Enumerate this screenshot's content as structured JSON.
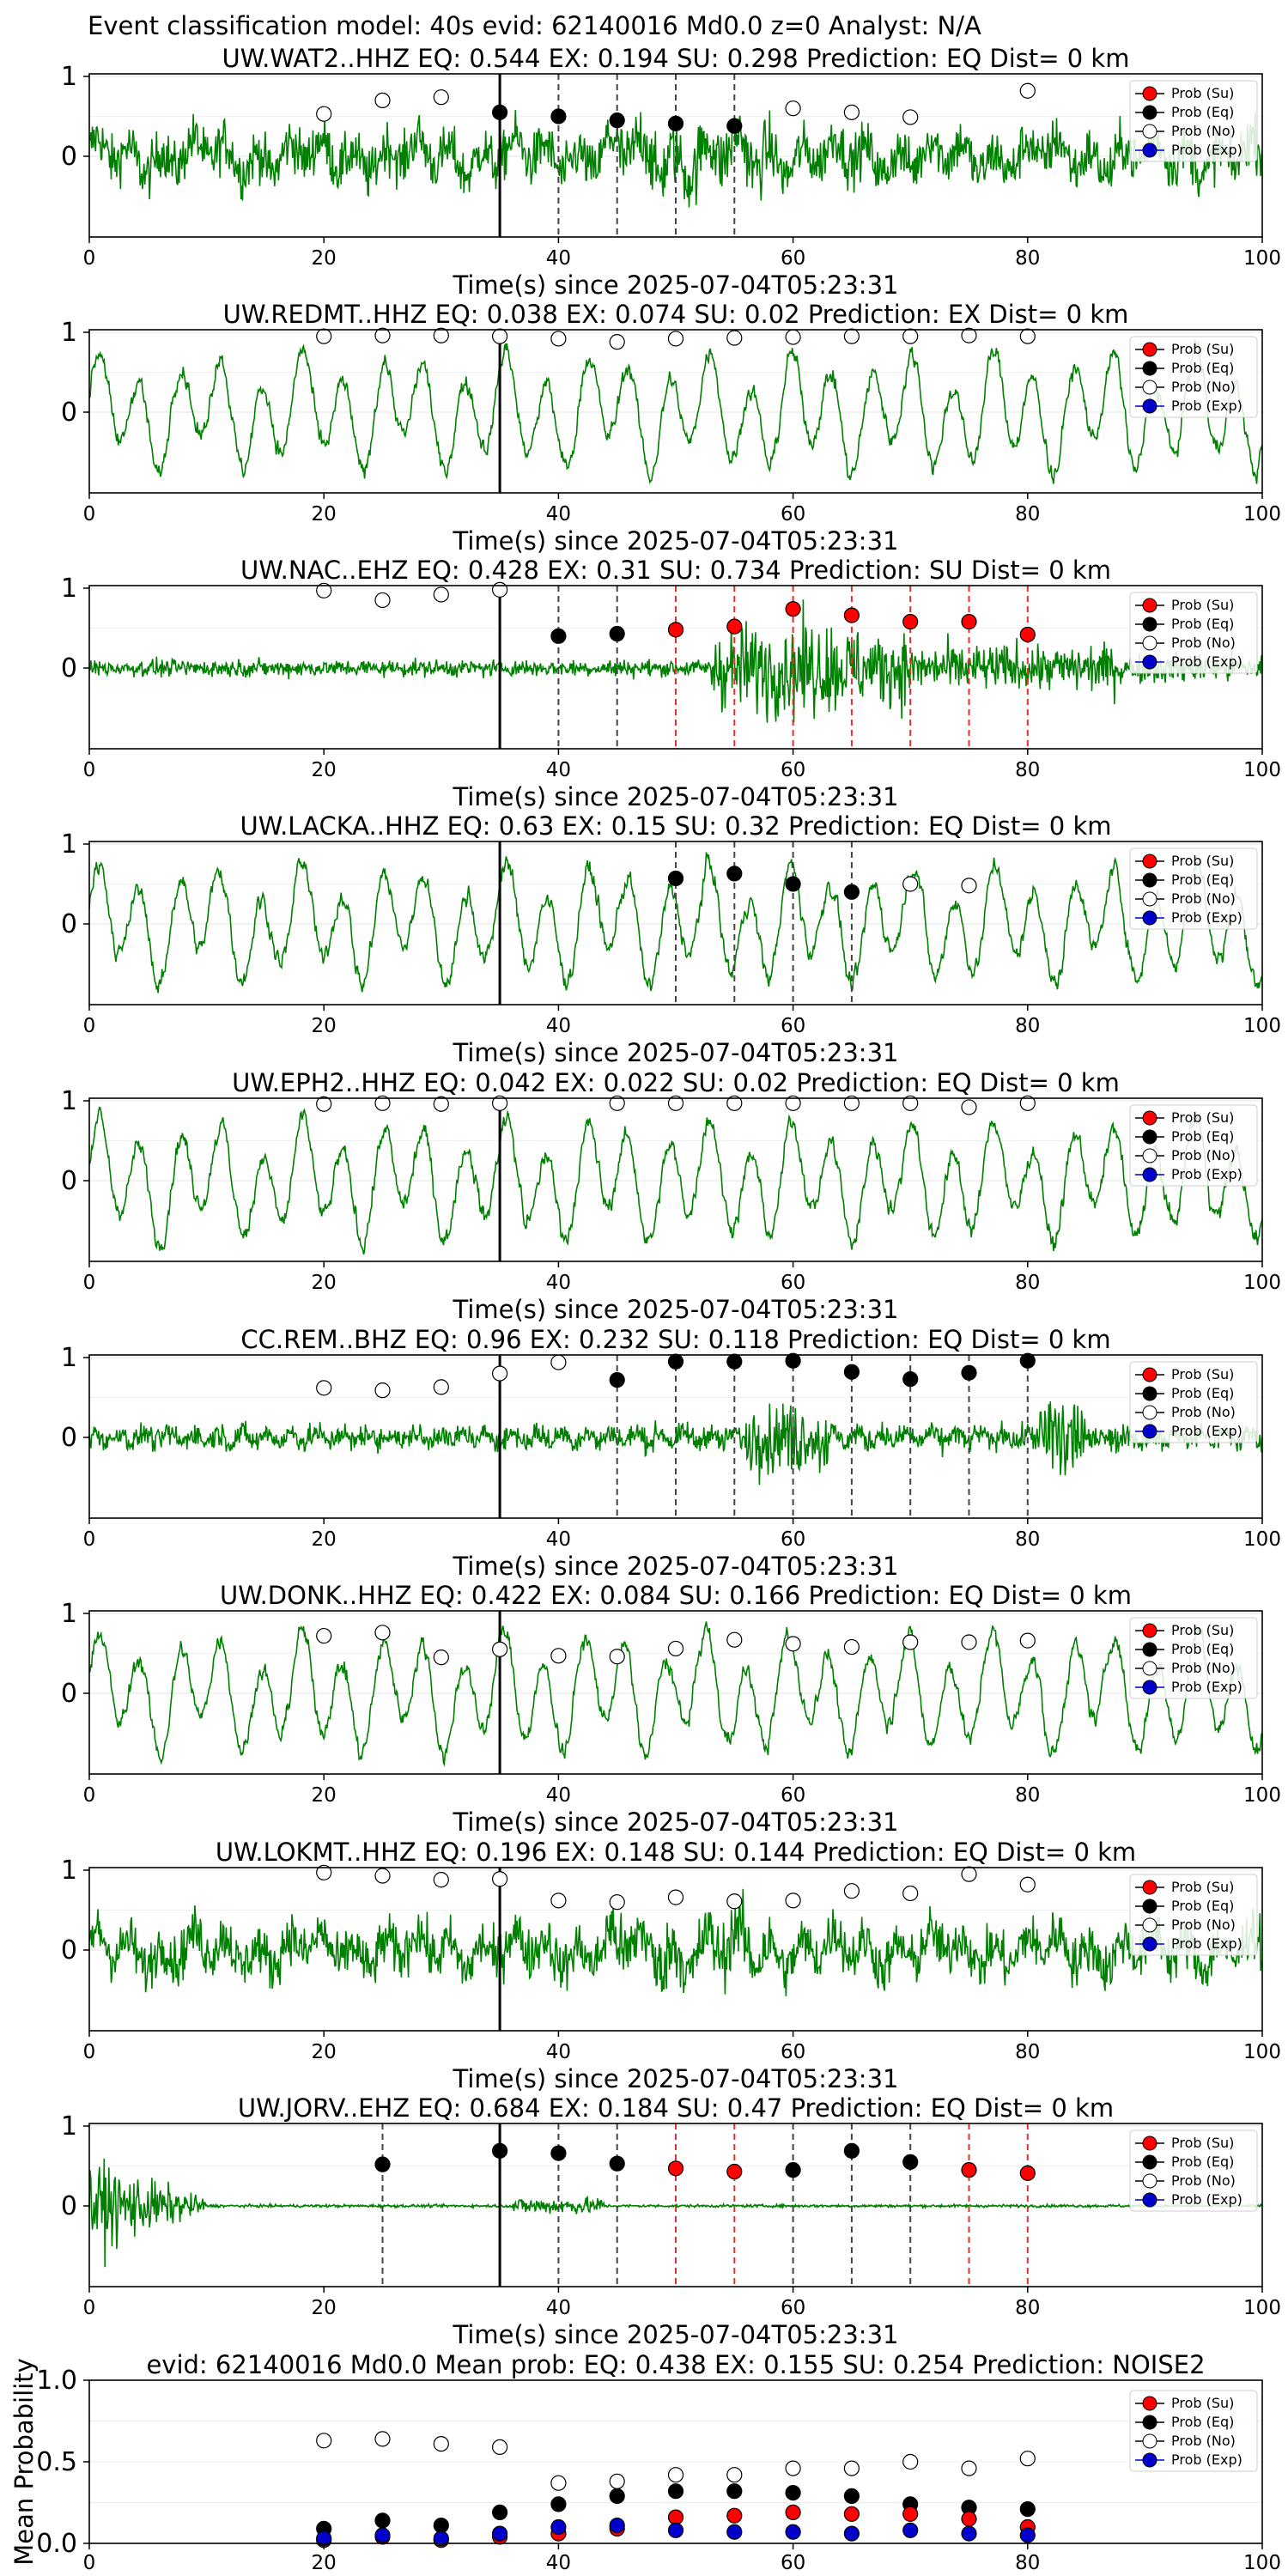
{
  "figure_title": "Event classification model: 40s evid: 62140016 Md0.0 z=0 Analyst: N/A",
  "legend_labels": [
    "Prob (Su)",
    "Prob (Eq)",
    "Prob (No)",
    "Prob (Exp)"
  ],
  "colors": {
    "su": "#ff0000",
    "eq": "#000000",
    "no": "#ffffff",
    "exp": "#0000cc",
    "trace": "#008000",
    "picks_eq": "#444444",
    "picks_su": "#e03030"
  },
  "chart_data": [
    {
      "type": "line",
      "station": "UW.WAT2..HHZ",
      "title": "UW.WAT2..HHZ   EQ: 0.544  EX: 0.194  SU: 0.298   Prediction: EQ    Dist= 0 km",
      "xlabel": "Time(s) since 2025-07-04T05:23:31",
      "xlim": [
        0,
        100
      ],
      "xticks": [
        0,
        20,
        40,
        60,
        80,
        100
      ],
      "yticks": [
        0,
        1
      ],
      "grid": true,
      "legend": "right",
      "trace_style": "dense",
      "onset": 35,
      "picks_eq": [
        40,
        45,
        50,
        55
      ],
      "picks_su": [],
      "markers": [
        {
          "x": 20,
          "cls": "no",
          "y": 0.53
        },
        {
          "x": 25,
          "cls": "no",
          "y": 0.7
        },
        {
          "x": 30,
          "cls": "no",
          "y": 0.74
        },
        {
          "x": 35,
          "cls": "eq",
          "y": 0.55
        },
        {
          "x": 40,
          "cls": "eq",
          "y": 0.5
        },
        {
          "x": 45,
          "cls": "eq",
          "y": 0.45
        },
        {
          "x": 50,
          "cls": "eq",
          "y": 0.41
        },
        {
          "x": 55,
          "cls": "eq",
          "y": 0.38
        },
        {
          "x": 60,
          "cls": "no",
          "y": 0.6
        },
        {
          "x": 65,
          "cls": "no",
          "y": 0.55
        },
        {
          "x": 70,
          "cls": "no",
          "y": 0.49
        },
        {
          "x": 80,
          "cls": "no",
          "y": 0.82
        }
      ]
    },
    {
      "type": "line",
      "station": "UW.REDMT..HHZ",
      "title": "UW.REDMT..HHZ   EQ: 0.038  EX: 0.074  SU: 0.02   Prediction: EX    Dist= 0 km",
      "xlabel": "Time(s) since 2025-07-04T05:23:31",
      "xlim": [
        0,
        100
      ],
      "xticks": [
        0,
        20,
        40,
        60,
        80,
        100
      ],
      "yticks": [
        0,
        1
      ],
      "grid": true,
      "legend": "right",
      "trace_style": "wavy",
      "onset": 35,
      "picks_eq": [],
      "picks_su": [],
      "markers": [
        {
          "x": 20,
          "cls": "no",
          "y": 0.95
        },
        {
          "x": 25,
          "cls": "no",
          "y": 0.96
        },
        {
          "x": 30,
          "cls": "no",
          "y": 0.96
        },
        {
          "x": 35,
          "cls": "no",
          "y": 0.95
        },
        {
          "x": 40,
          "cls": "no",
          "y": 0.92
        },
        {
          "x": 45,
          "cls": "no",
          "y": 0.88
        },
        {
          "x": 50,
          "cls": "no",
          "y": 0.92
        },
        {
          "x": 55,
          "cls": "no",
          "y": 0.93
        },
        {
          "x": 60,
          "cls": "no",
          "y": 0.94
        },
        {
          "x": 65,
          "cls": "no",
          "y": 0.95
        },
        {
          "x": 70,
          "cls": "no",
          "y": 0.95
        },
        {
          "x": 75,
          "cls": "no",
          "y": 0.96
        },
        {
          "x": 80,
          "cls": "no",
          "y": 0.95
        }
      ]
    },
    {
      "type": "line",
      "station": "UW.NAC..EHZ",
      "title": "UW.NAC..EHZ   EQ: 0.428  EX: 0.31  SU: 0.734   Prediction: SU    Dist= 0 km",
      "xlabel": "Time(s) since 2025-07-04T05:23:31",
      "xlim": [
        0,
        100
      ],
      "xticks": [
        0,
        20,
        40,
        60,
        80,
        100
      ],
      "yticks": [
        0,
        1
      ],
      "grid": true,
      "legend": "right",
      "trace_style": "burst",
      "onset": 35,
      "picks_eq": [
        40,
        45
      ],
      "picks_su": [
        50,
        55,
        60,
        65,
        70,
        75,
        80
      ],
      "markers": [
        {
          "x": 20,
          "cls": "no",
          "y": 0.97
        },
        {
          "x": 25,
          "cls": "no",
          "y": 0.85
        },
        {
          "x": 30,
          "cls": "no",
          "y": 0.92
        },
        {
          "x": 35,
          "cls": "no",
          "y": 0.98
        },
        {
          "x": 40,
          "cls": "eq",
          "y": 0.4
        },
        {
          "x": 45,
          "cls": "eq",
          "y": 0.43
        },
        {
          "x": 50,
          "cls": "su",
          "y": 0.48
        },
        {
          "x": 55,
          "cls": "su",
          "y": 0.52
        },
        {
          "x": 60,
          "cls": "su",
          "y": 0.74
        },
        {
          "x": 65,
          "cls": "su",
          "y": 0.66
        },
        {
          "x": 70,
          "cls": "su",
          "y": 0.58
        },
        {
          "x": 75,
          "cls": "su",
          "y": 0.58
        },
        {
          "x": 80,
          "cls": "su",
          "y": 0.42
        }
      ]
    },
    {
      "type": "line",
      "station": "UW.LACKA..HHZ",
      "title": "UW.LACKA..HHZ   EQ: 0.63  EX: 0.15  SU: 0.32   Prediction: EQ    Dist= 0 km",
      "xlabel": "Time(s) since 2025-07-04T05:23:31",
      "xlim": [
        0,
        100
      ],
      "xticks": [
        0,
        20,
        40,
        60,
        80,
        100
      ],
      "yticks": [
        0,
        1
      ],
      "grid": true,
      "legend": "right",
      "trace_style": "wavy",
      "onset": 35,
      "picks_eq": [
        50,
        55,
        60,
        65
      ],
      "picks_su": [],
      "markers": [
        {
          "x": 50,
          "cls": "eq",
          "y": 0.57
        },
        {
          "x": 55,
          "cls": "eq",
          "y": 0.63
        },
        {
          "x": 60,
          "cls": "eq",
          "y": 0.5
        },
        {
          "x": 65,
          "cls": "eq",
          "y": 0.4
        },
        {
          "x": 70,
          "cls": "no",
          "y": 0.5
        },
        {
          "x": 75,
          "cls": "no",
          "y": 0.48
        }
      ]
    },
    {
      "type": "line",
      "station": "UW.EPH2..HHZ",
      "title": "UW.EPH2..HHZ   EQ: 0.042  EX: 0.022  SU: 0.02   Prediction: EQ    Dist= 0 km",
      "xlabel": "Time(s) since 2025-07-04T05:23:31",
      "xlim": [
        0,
        100
      ],
      "xticks": [
        0,
        20,
        40,
        60,
        80,
        100
      ],
      "yticks": [
        0,
        1
      ],
      "grid": true,
      "legend": "right",
      "trace_style": "wavy",
      "onset": 35,
      "picks_eq": [],
      "picks_su": [],
      "markers": [
        {
          "x": 20,
          "cls": "no",
          "y": 0.96
        },
        {
          "x": 25,
          "cls": "no",
          "y": 0.97
        },
        {
          "x": 30,
          "cls": "no",
          "y": 0.96
        },
        {
          "x": 35,
          "cls": "no",
          "y": 0.97
        },
        {
          "x": 45,
          "cls": "no",
          "y": 0.97
        },
        {
          "x": 50,
          "cls": "no",
          "y": 0.97
        },
        {
          "x": 55,
          "cls": "no",
          "y": 0.97
        },
        {
          "x": 60,
          "cls": "no",
          "y": 0.97
        },
        {
          "x": 65,
          "cls": "no",
          "y": 0.97
        },
        {
          "x": 70,
          "cls": "no",
          "y": 0.97
        },
        {
          "x": 75,
          "cls": "no",
          "y": 0.92
        },
        {
          "x": 80,
          "cls": "no",
          "y": 0.97
        }
      ]
    },
    {
      "type": "line",
      "station": "CC.REM..BHZ",
      "title": "CC.REM..BHZ   EQ: 0.96  EX: 0.232  SU: 0.118   Prediction: EQ    Dist= 0 km",
      "xlabel": "Time(s) since 2025-07-04T05:23:31",
      "xlim": [
        0,
        100
      ],
      "xticks": [
        0,
        20,
        40,
        60,
        80,
        100
      ],
      "yticks": [
        0,
        1
      ],
      "grid": true,
      "legend": "right",
      "trace_style": "spiky",
      "onset": 35,
      "picks_eq": [
        45,
        50,
        55,
        60,
        65,
        70,
        75,
        80
      ],
      "picks_su": [],
      "markers": [
        {
          "x": 20,
          "cls": "no",
          "y": 0.62
        },
        {
          "x": 25,
          "cls": "no",
          "y": 0.59
        },
        {
          "x": 30,
          "cls": "no",
          "y": 0.63
        },
        {
          "x": 35,
          "cls": "no",
          "y": 0.8
        },
        {
          "x": 40,
          "cls": "no",
          "y": 0.94
        },
        {
          "x": 45,
          "cls": "eq",
          "y": 0.72
        },
        {
          "x": 50,
          "cls": "eq",
          "y": 0.95
        },
        {
          "x": 55,
          "cls": "eq",
          "y": 0.95
        },
        {
          "x": 60,
          "cls": "eq",
          "y": 0.96
        },
        {
          "x": 65,
          "cls": "eq",
          "y": 0.82
        },
        {
          "x": 70,
          "cls": "eq",
          "y": 0.73
        },
        {
          "x": 75,
          "cls": "eq",
          "y": 0.81
        },
        {
          "x": 80,
          "cls": "eq",
          "y": 0.96
        }
      ]
    },
    {
      "type": "line",
      "station": "UW.DONK..HHZ",
      "title": "UW.DONK..HHZ   EQ: 0.422  EX: 0.084  SU: 0.166   Prediction: EQ    Dist= 0 km",
      "xlabel": "Time(s) since 2025-07-04T05:23:31",
      "xlim": [
        0,
        100
      ],
      "xticks": [
        0,
        20,
        40,
        60,
        80,
        100
      ],
      "yticks": [
        0,
        1
      ],
      "grid": true,
      "legend": "right",
      "trace_style": "wavy",
      "onset": 35,
      "picks_eq": [],
      "picks_su": [],
      "markers": [
        {
          "x": 20,
          "cls": "no",
          "y": 0.72
        },
        {
          "x": 25,
          "cls": "no",
          "y": 0.76
        },
        {
          "x": 30,
          "cls": "no",
          "y": 0.45
        },
        {
          "x": 35,
          "cls": "no",
          "y": 0.55
        },
        {
          "x": 40,
          "cls": "no",
          "y": 0.47
        },
        {
          "x": 45,
          "cls": "no",
          "y": 0.46
        },
        {
          "x": 50,
          "cls": "no",
          "y": 0.56
        },
        {
          "x": 55,
          "cls": "no",
          "y": 0.67
        },
        {
          "x": 60,
          "cls": "no",
          "y": 0.62
        },
        {
          "x": 65,
          "cls": "no",
          "y": 0.58
        },
        {
          "x": 70,
          "cls": "no",
          "y": 0.64
        },
        {
          "x": 75,
          "cls": "no",
          "y": 0.64
        },
        {
          "x": 80,
          "cls": "no",
          "y": 0.66
        }
      ]
    },
    {
      "type": "line",
      "station": "UW.LOKMT..HHZ",
      "title": "UW.LOKMT..HHZ   EQ: 0.196  EX: 0.148  SU: 0.144   Prediction: EQ    Dist= 0 km",
      "xlabel": "Time(s) since 2025-07-04T05:23:31",
      "xlim": [
        0,
        100
      ],
      "xticks": [
        0,
        20,
        40,
        60,
        80,
        100
      ],
      "yticks": [
        0,
        1
      ],
      "grid": true,
      "legend": "right",
      "trace_style": "dense",
      "onset": 35,
      "picks_eq": [],
      "picks_su": [],
      "markers": [
        {
          "x": 20,
          "cls": "no",
          "y": 0.97
        },
        {
          "x": 25,
          "cls": "no",
          "y": 0.93
        },
        {
          "x": 30,
          "cls": "no",
          "y": 0.88
        },
        {
          "x": 35,
          "cls": "no",
          "y": 0.89
        },
        {
          "x": 40,
          "cls": "no",
          "y": 0.62
        },
        {
          "x": 45,
          "cls": "no",
          "y": 0.6
        },
        {
          "x": 50,
          "cls": "no",
          "y": 0.66
        },
        {
          "x": 55,
          "cls": "no",
          "y": 0.61
        },
        {
          "x": 60,
          "cls": "no",
          "y": 0.62
        },
        {
          "x": 65,
          "cls": "no",
          "y": 0.74
        },
        {
          "x": 70,
          "cls": "no",
          "y": 0.71
        },
        {
          "x": 75,
          "cls": "no",
          "y": 0.95
        },
        {
          "x": 80,
          "cls": "no",
          "y": 0.82
        }
      ]
    },
    {
      "type": "line",
      "station": "UW.JORV..EHZ",
      "title": "UW.JORV..EHZ   EQ: 0.684  EX: 0.184  SU: 0.47   Prediction: EQ    Dist= 0 km",
      "xlabel": "Time(s) since 2025-07-04T05:23:31",
      "xlim": [
        0,
        100
      ],
      "xticks": [
        0,
        20,
        40,
        60,
        80,
        100
      ],
      "yticks": [
        0,
        1
      ],
      "grid": true,
      "legend": "right",
      "trace_style": "early",
      "onset": 35,
      "picks_eq": [
        25,
        40,
        45,
        60,
        65,
        70
      ],
      "picks_su": [
        50,
        55,
        75,
        80
      ],
      "markers": [
        {
          "x": 25,
          "cls": "eq",
          "y": 0.52
        },
        {
          "x": 35,
          "cls": "eq",
          "y": 0.69
        },
        {
          "x": 40,
          "cls": "eq",
          "y": 0.66
        },
        {
          "x": 45,
          "cls": "eq",
          "y": 0.53
        },
        {
          "x": 50,
          "cls": "su",
          "y": 0.47
        },
        {
          "x": 55,
          "cls": "su",
          "y": 0.43
        },
        {
          "x": 60,
          "cls": "eq",
          "y": 0.45
        },
        {
          "x": 65,
          "cls": "eq",
          "y": 0.69
        },
        {
          "x": 70,
          "cls": "eq",
          "y": 0.55
        },
        {
          "x": 75,
          "cls": "su",
          "y": 0.45
        },
        {
          "x": 80,
          "cls": "su",
          "y": 0.41
        }
      ]
    },
    {
      "type": "scatter",
      "title": "evid: 62140016  Md0.0   Mean prob:    EQ: 0.438  EX: 0.155  SU: 0.254   Prediction: NOISE2",
      "ylabel": "Mean Probability",
      "xlim": [
        0,
        100
      ],
      "ylim": [
        0,
        1
      ],
      "xticks": [
        0,
        20,
        40,
        60,
        80,
        100
      ],
      "yticks": [
        0.0,
        0.5,
        1.0
      ],
      "ytick_labels": [
        "0.0",
        "0.5",
        "1.0"
      ],
      "grid": true,
      "legend": "right",
      "x": [
        20,
        25,
        30,
        35,
        40,
        45,
        50,
        55,
        60,
        65,
        70,
        75,
        80
      ],
      "series": [
        {
          "name": "Prob (No)",
          "cls": "no",
          "values": [
            0.63,
            0.64,
            0.61,
            0.59,
            0.37,
            0.38,
            0.42,
            0.42,
            0.46,
            0.46,
            0.5,
            0.46,
            0.52
          ]
        },
        {
          "name": "Prob (Eq)",
          "cls": "eq",
          "values": [
            0.09,
            0.14,
            0.11,
            0.19,
            0.24,
            0.29,
            0.32,
            0.32,
            0.31,
            0.29,
            0.24,
            0.22,
            0.21
          ]
        },
        {
          "name": "Prob (Su)",
          "cls": "su",
          "values": [
            0.02,
            0.04,
            0.02,
            0.04,
            0.06,
            0.09,
            0.16,
            0.17,
            0.19,
            0.18,
            0.18,
            0.15,
            0.1
          ]
        },
        {
          "name": "Prob (Exp)",
          "cls": "exp",
          "values": [
            0.03,
            0.05,
            0.03,
            0.06,
            0.1,
            0.11,
            0.08,
            0.07,
            0.07,
            0.06,
            0.08,
            0.06,
            0.05
          ]
        }
      ]
    }
  ]
}
